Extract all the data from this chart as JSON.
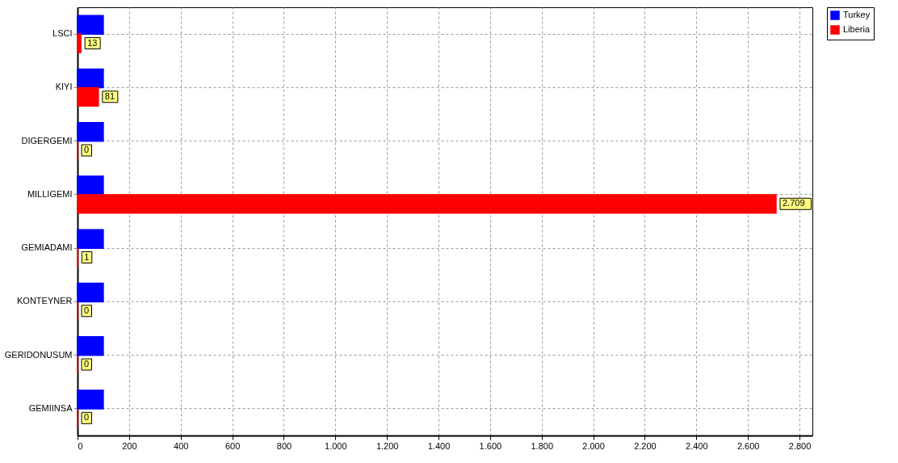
{
  "chart_data": {
    "type": "bar",
    "orientation": "horizontal",
    "categories": [
      "LSCI",
      "KIYI",
      "DIGERGEMI",
      "MILLIGEMI",
      "GEMIADAMI",
      "KONTEYNER",
      "GERIDONUSUM",
      "GEMIINSA"
    ],
    "series": [
      {
        "name": "Turkey",
        "color": "#0000ff",
        "values": [
          100,
          100,
          100,
          100,
          100,
          100,
          100,
          100
        ]
      },
      {
        "name": "Liberia",
        "color": "#ff0000",
        "values": [
          13,
          81,
          0,
          2709,
          1,
          0,
          0,
          0
        ],
        "value_labels": [
          "13",
          "81",
          "0",
          "2.709",
          "1",
          "0",
          "0",
          "0"
        ]
      }
    ],
    "xlim": [
      0,
      2850
    ],
    "xticks": [
      0,
      200,
      400,
      600,
      800,
      {
        "value": 1000,
        "label": "1.000"
      },
      {
        "value": 1200,
        "label": "1.200"
      },
      {
        "value": 1400,
        "label": "1.400"
      },
      {
        "value": 1600,
        "label": "1.600"
      },
      {
        "value": 1800,
        "label": "1.800"
      },
      {
        "value": 2000,
        "label": "2.000"
      },
      {
        "value": 2200,
        "label": "2.200"
      },
      {
        "value": 2400,
        "label": "2.400"
      },
      {
        "value": 2600,
        "label": "2.600"
      },
      {
        "value": 2800,
        "label": "2.800"
      }
    ],
    "grid": true,
    "legend": "top right"
  }
}
